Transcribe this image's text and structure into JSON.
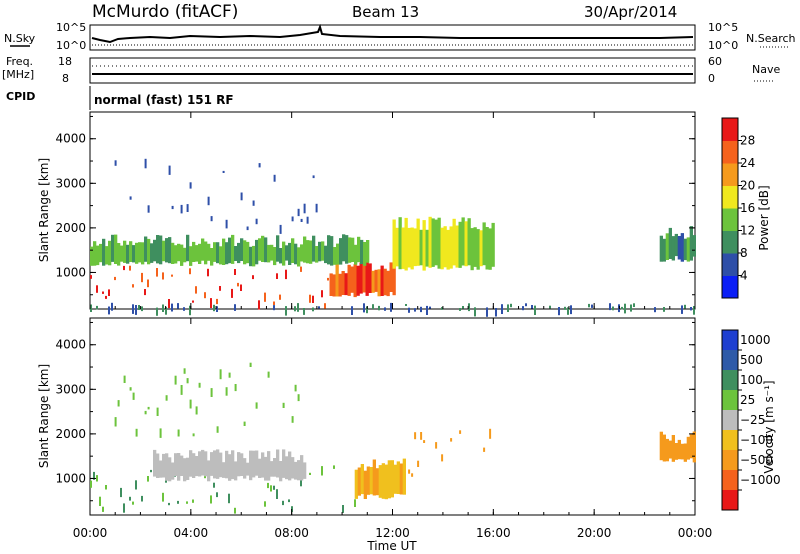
{
  "header": {
    "station": "McMurdo (fitACF)",
    "beam": "Beam 13",
    "date": "30/Apr/2014"
  },
  "summary_panels": {
    "nsky_label": "N.Sky",
    "nsearch_label": "N.Search",
    "scale_top": "10^5",
    "scale_bottom": "10^0",
    "freq_label": "Freq.",
    "freq_unit": "[MHz]",
    "freq_top": "18",
    "freq_bottom": "8",
    "nave_label": "Nave",
    "nave_top": "60",
    "nave_bottom": "0",
    "cpid_label": "CPID",
    "cpid_value": "normal (fast) 151 RF"
  },
  "chart_data": [
    {
      "type": "heatmap",
      "title": "",
      "xlabel": "Time UT",
      "ylabel": "Slant Range [km]",
      "x_ticks": [
        "00:00",
        "04:00",
        "08:00",
        "12:00",
        "16:00",
        "20:00",
        "00:00"
      ],
      "y_ticks": [
        "1000",
        "2000",
        "3000",
        "4000"
      ],
      "ylim": [
        180,
        4600
      ],
      "colorbar_label": "Power [dB]",
      "colorbar_ticks": [
        "4",
        "8",
        "12",
        "16",
        "20",
        "24",
        "28"
      ],
      "colorbar_colors": [
        "#0b1ff5",
        "#2e4fa8",
        "#3f8f5f",
        "#6cc33c",
        "#f0e81e",
        "#f59a1c",
        "#f5621c",
        "#e81818"
      ],
      "regions": [
        {
          "t_start": 0.0,
          "t_end": 9.5,
          "r_low": 300,
          "r_high": 1200,
          "value": 28
        },
        {
          "t_start": 9.5,
          "t_end": 12.0,
          "r_low": 500,
          "r_high": 1100,
          "value": 26
        },
        {
          "t_start": 12.0,
          "t_end": 16.0,
          "r_low": 1100,
          "r_high": 2100,
          "value": 16
        },
        {
          "t_start": 0.0,
          "t_end": 11.0,
          "r_low": 1200,
          "r_high": 1700,
          "value": 12
        },
        {
          "t_start": 22.6,
          "t_end": 24.0,
          "r_low": 1300,
          "r_high": 1900,
          "value": 10
        },
        {
          "t_start": 0.5,
          "t_end": 9.0,
          "r_low": 2000,
          "r_high": 3600,
          "value": 6
        },
        {
          "t_start": 0.0,
          "t_end": 24.0,
          "r_low": 200,
          "r_high": 320,
          "value": 8
        }
      ]
    },
    {
      "type": "heatmap",
      "title": "",
      "xlabel": "Time UT",
      "ylabel": "Slant Range [km]",
      "x_ticks": [
        "00:00",
        "04:00",
        "08:00",
        "12:00",
        "16:00",
        "20:00",
        "00:00"
      ],
      "y_ticks": [
        "1000",
        "2000",
        "3000",
        "4000"
      ],
      "ylim": [
        180,
        4600
      ],
      "colorbar_label": "Velocity [m s⁻¹]",
      "colorbar_ticks": [
        "1000",
        "500",
        "100",
        "25",
        "−25",
        "−100",
        "−500",
        "−1000"
      ],
      "colorbar_colors": [
        "#1f3fd0",
        "#2e5aa8",
        "#3f8f5f",
        "#6cc33c",
        "#bdbdbd",
        "#f0c01e",
        "#f59a1c",
        "#f5621c",
        "#e81818"
      ],
      "regions": [
        {
          "t_start": 0.0,
          "t_end": 10.5,
          "r_low": 300,
          "r_high": 1300,
          "value": 100
        },
        {
          "t_start": 2.5,
          "t_end": 8.5,
          "r_low": 1000,
          "r_high": 1500,
          "value": 0
        },
        {
          "t_start": 10.5,
          "t_end": 12.5,
          "r_low": 600,
          "r_high": 1300,
          "value": -100
        },
        {
          "t_start": 12.5,
          "t_end": 16.0,
          "r_low": 1100,
          "r_high": 2200,
          "value": -300
        },
        {
          "t_start": 22.6,
          "t_end": 24.0,
          "r_low": 1400,
          "r_high": 1900,
          "value": -150
        },
        {
          "t_start": 0.5,
          "t_end": 9.0,
          "r_low": 2000,
          "r_high": 3600,
          "value": 50
        }
      ]
    }
  ]
}
